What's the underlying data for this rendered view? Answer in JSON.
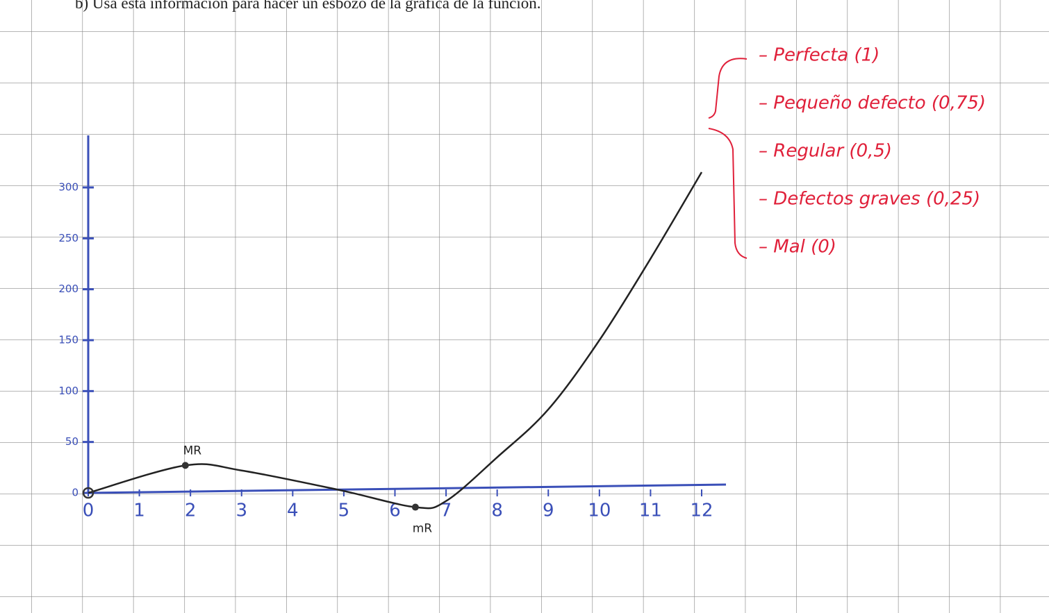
{
  "header": {
    "text": "b)  Usa esta información para hacer un esbozo de la gráfica de la función."
  },
  "chart_data": {
    "type": "line",
    "x": [
      0,
      1.9,
      3,
      4.9,
      6.4,
      7,
      8,
      9,
      10,
      11,
      12
    ],
    "series": [
      {
        "color": "#222222",
        "values": [
          0,
          27,
          22,
          3,
          -14,
          -8,
          35,
          82,
          150,
          230,
          315
        ]
      }
    ],
    "xlim": [
      0,
      12
    ],
    "xticks": [
      0,
      1,
      2,
      3,
      4,
      5,
      6,
      7,
      8,
      9,
      10,
      11,
      12
    ],
    "ylim": [
      0,
      300
    ],
    "yticks": [
      0,
      50,
      100,
      150,
      200,
      250,
      300
    ],
    "axis_color": "#3a4fb8",
    "annotations": [
      {
        "text": "MR",
        "x": 1.9,
        "y": 27
      },
      {
        "text": "mR",
        "x": 6.4,
        "y": -14
      }
    ]
  },
  "legend_notes": [
    "– Perfecta (1)",
    "– Pequeño defecto (0,75)",
    "– Regular (0,5)",
    "– Defectos graves (0,25)",
    "– Mal (0)"
  ]
}
